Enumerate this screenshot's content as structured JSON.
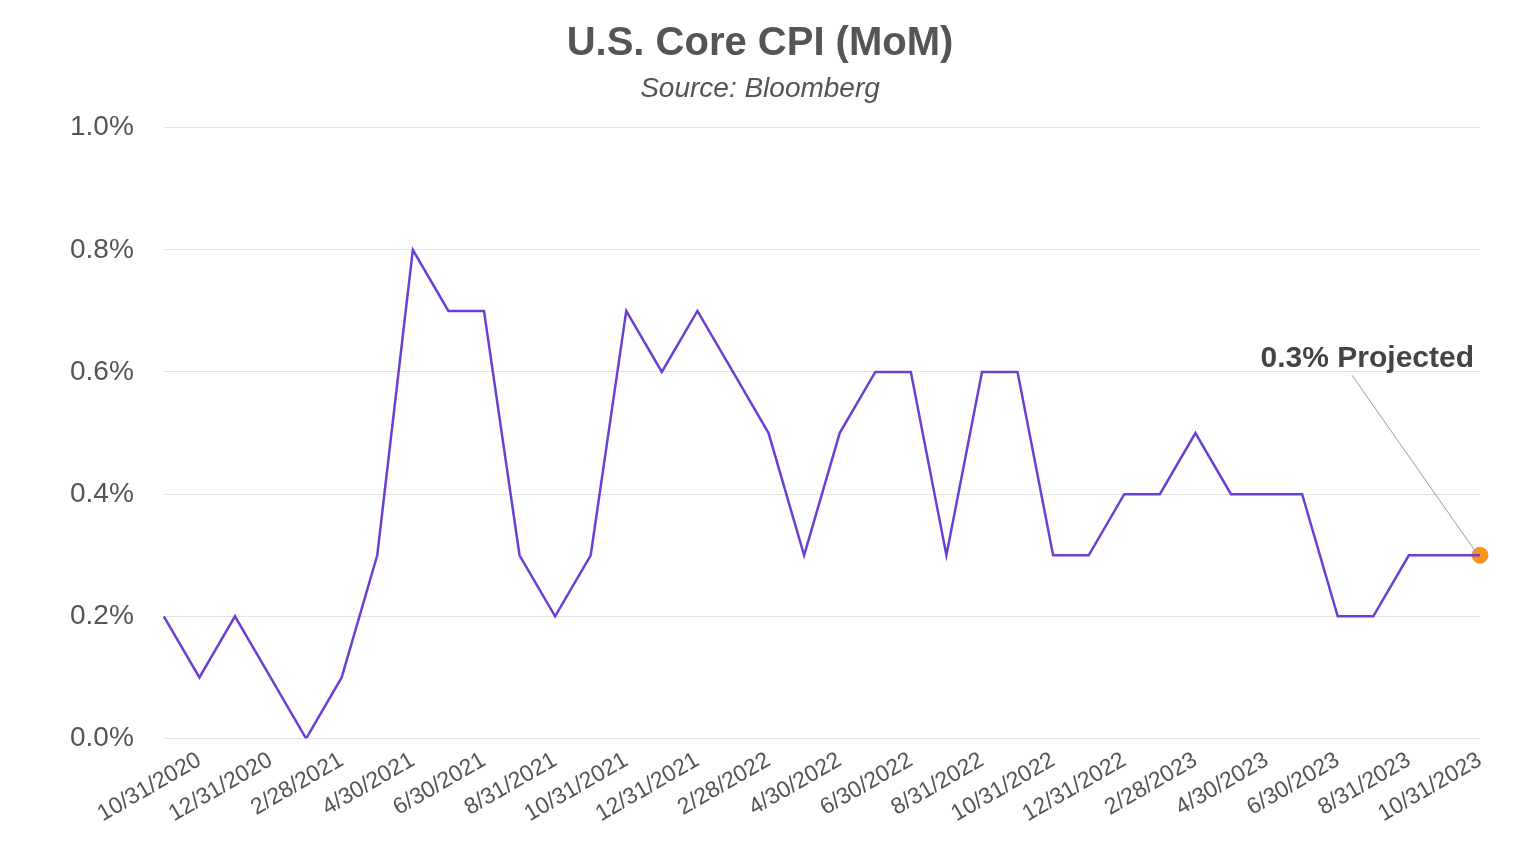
{
  "chart_data": {
    "type": "line",
    "title": "U.S. Core CPI (MoM)",
    "subtitle": "Source: Bloomberg",
    "categories": [
      null,
      "10/31/2020",
      null,
      "12/31/2020",
      null,
      "2/28/2021",
      null,
      "4/30/2021",
      null,
      "6/30/2021",
      null,
      "8/31/2021",
      null,
      "10/31/2021",
      null,
      "12/31/2021",
      null,
      "2/28/2022",
      null,
      "4/30/2022",
      null,
      "6/30/2022",
      null,
      "8/31/2022",
      null,
      "10/31/2022",
      null,
      "12/31/2022",
      null,
      "2/28/2023",
      null,
      "4/30/2023",
      null,
      "6/30/2023",
      null,
      "8/31/2023",
      null,
      "10/31/2023"
    ],
    "values": [
      0.2,
      0.1,
      0.2,
      0.1,
      0.0,
      0.1,
      0.3,
      0.8,
      0.7,
      0.7,
      0.3,
      0.2,
      0.3,
      0.7,
      0.6,
      0.7,
      0.6,
      0.5,
      0.3,
      0.5,
      0.6,
      0.6,
      0.3,
      0.6,
      0.6,
      0.3,
      0.3,
      0.4,
      0.4,
      0.5,
      0.4,
      0.4,
      0.4,
      0.2,
      0.2,
      0.3,
      0.3,
      0.3
    ],
    "color": "#6c3fd4",
    "ylim": [
      0,
      1.0
    ],
    "yticks": [
      {
        "value": 0,
        "label": "0.0%"
      },
      {
        "value": 0.2,
        "label": "0.2%"
      },
      {
        "value": 0.4,
        "label": "0.4%"
      },
      {
        "value": 0.6,
        "label": "0.6%"
      },
      {
        "value": 0.8,
        "label": "0.8%"
      },
      {
        "value": 1.0,
        "label": "1.0%"
      }
    ],
    "grid": true,
    "annotations": [
      {
        "text": "0.3% Projected",
        "x": "10/31/2023",
        "y": 0.3,
        "color": "#f7941d"
      }
    ]
  }
}
